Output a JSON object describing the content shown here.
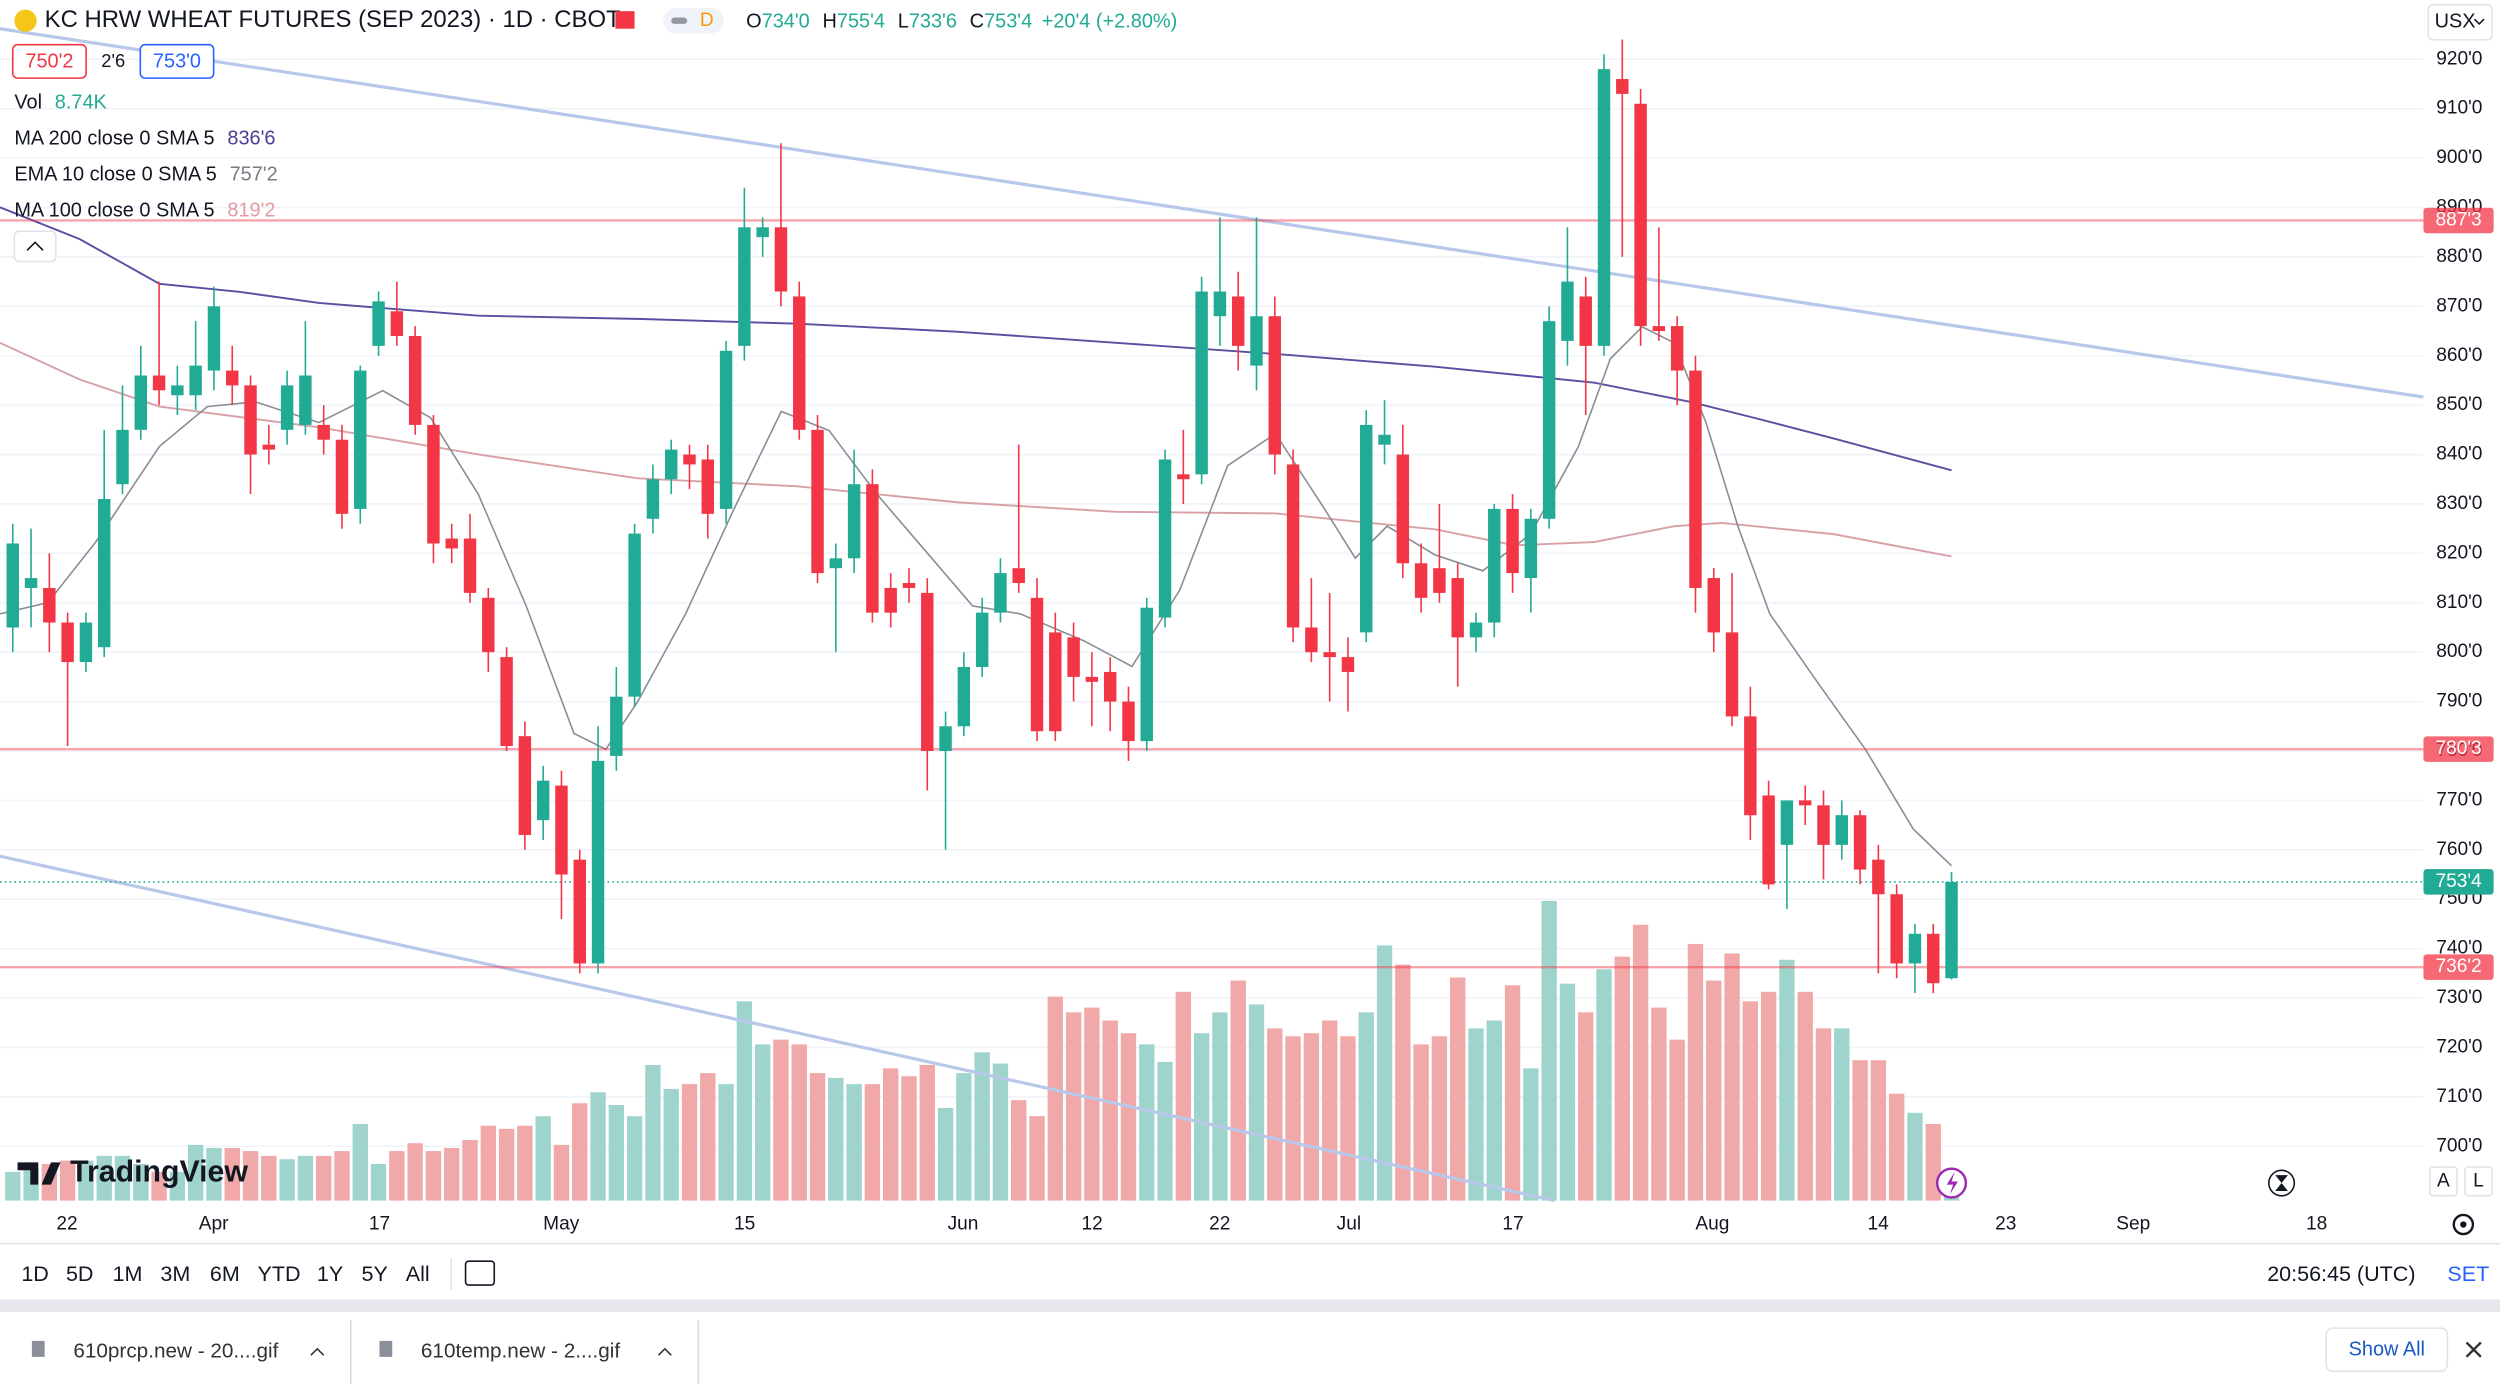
{
  "header": {
    "title": "KC HRW WHEAT FUTURES (SEP 2023) · 1D · CBOT",
    "badge": "D",
    "ohlc": [
      [
        "O",
        "734'0"
      ],
      [
        "H",
        "755'4"
      ],
      [
        "L",
        "733'6"
      ],
      [
        "C",
        "753'4"
      ]
    ],
    "change": "+20'4 (+2.80%)",
    "currency": "USX"
  },
  "quote": {
    "bid": "750'2",
    "spread": "2'6",
    "ask": "753'0"
  },
  "legend": [
    {
      "name": "Vol",
      "value": "8.74K",
      "color": "#22ab94"
    },
    {
      "name": "MA 200 close 0 SMA 5",
      "value": "836'6",
      "color": "#4a3f95"
    },
    {
      "name": "EMA 10 close 0 SMA 5",
      "value": "757'2",
      "color": "#787b86"
    },
    {
      "name": "MA 100 close 0 SMA 5",
      "value": "819'2",
      "color": "#e39aa2"
    }
  ],
  "logo": "TradingView",
  "scale_buttons": [
    "A",
    "L"
  ],
  "chart_data": {
    "type": "candlestick",
    "up_color": "#22ab94",
    "down_color": "#f23645",
    "volume_up_color": "#9fd4cc",
    "volume_down_color": "#f0a8a8",
    "xlabels": [
      "22",
      "Apr",
      "17",
      "May",
      "15",
      "Jun",
      "12",
      "22",
      "Jul",
      "17",
      "Aug",
      "14",
      "23",
      "Sep",
      "18"
    ],
    "open": [
      805,
      813,
      813,
      806,
      798,
      801,
      834,
      845,
      856,
      852,
      852,
      857,
      857,
      854,
      842,
      845,
      846,
      846,
      843,
      829,
      862,
      869,
      864,
      846,
      823,
      823,
      811,
      799,
      783,
      766,
      773,
      758,
      737,
      779,
      791,
      827,
      835,
      840,
      839,
      829,
      862,
      884,
      886,
      872,
      845,
      817,
      819,
      834,
      813,
      814,
      812,
      780,
      785,
      797,
      808,
      817,
      811,
      804,
      803,
      795,
      796,
      790,
      782,
      807,
      836,
      836,
      868,
      872,
      858,
      868,
      838,
      805,
      800,
      799,
      804,
      842,
      840,
      818,
      817,
      815,
      803,
      806,
      829,
      815,
      827,
      863,
      872,
      862,
      916,
      911,
      866,
      866,
      857,
      815,
      804,
      787,
      771,
      761,
      770,
      769,
      761,
      767,
      758,
      751,
      737,
      743,
      734
    ],
    "high": [
      826,
      825,
      820,
      808,
      808,
      845,
      854,
      862,
      875,
      858,
      867,
      874,
      862,
      856,
      846,
      857,
      867,
      850,
      846,
      858,
      873,
      875,
      866,
      848,
      826,
      828,
      813,
      801,
      786,
      777,
      776,
      760,
      785,
      797,
      826,
      838,
      843,
      842,
      842,
      863,
      894,
      888,
      903,
      875,
      848,
      822,
      841,
      837,
      816,
      817,
      815,
      788,
      800,
      811,
      819,
      842,
      815,
      808,
      806,
      800,
      799,
      793,
      811,
      841,
      845,
      876,
      888,
      877,
      888,
      872,
      841,
      815,
      812,
      803,
      849,
      851,
      846,
      822,
      830,
      818,
      808,
      830,
      832,
      829,
      870,
      886,
      876,
      921,
      924,
      914,
      886,
      868,
      860,
      817,
      816,
      793,
      774,
      768,
      773,
      772,
      770,
      768,
      761,
      753,
      745,
      745,
      755.5
    ],
    "low": [
      800,
      805,
      800,
      781,
      796,
      799,
      832,
      843,
      850,
      848,
      849,
      853,
      850,
      832,
      838,
      842,
      844,
      840,
      825,
      826,
      860,
      862,
      844,
      818,
      818,
      810,
      796,
      780,
      760,
      762,
      746,
      735,
      735,
      776,
      789,
      824,
      832,
      833,
      823,
      826,
      859,
      880,
      870,
      843,
      814,
      800,
      816,
      806,
      805,
      810,
      772,
      760,
      783,
      795,
      806,
      812,
      782,
      782,
      790,
      785,
      784,
      778,
      780,
      805,
      830,
      834,
      862,
      857,
      853,
      836,
      802,
      798,
      790,
      788,
      802,
      838,
      815,
      808,
      810,
      793,
      800,
      803,
      812,
      808,
      825,
      858,
      848,
      860,
      880,
      862,
      863,
      850,
      808,
      800,
      785,
      762,
      752,
      748,
      765,
      754,
      758,
      753,
      735,
      734,
      731,
      731,
      733.75
    ],
    "close": [
      822,
      815,
      806,
      798,
      806,
      831,
      845,
      856,
      853,
      854,
      858,
      870,
      854,
      840,
      841,
      854,
      856,
      843,
      828,
      857,
      871,
      864,
      846,
      822,
      821,
      812,
      800,
      781,
      763,
      774,
      755,
      737,
      778,
      791,
      824,
      835,
      841,
      838,
      828,
      861,
      886,
      886,
      873,
      845,
      816,
      819,
      834,
      808,
      808,
      813,
      780,
      785,
      797,
      808,
      816,
      814,
      784,
      784,
      795,
      794,
      790,
      782,
      809,
      839,
      835,
      873,
      873,
      862,
      868,
      840,
      805,
      800,
      799,
      796,
      846,
      844,
      818,
      811,
      812,
      803,
      806,
      829,
      816,
      827,
      867,
      875,
      862,
      918,
      913,
      866,
      865,
      857,
      813,
      804,
      787,
      767,
      753,
      770,
      769,
      761,
      767,
      756,
      751,
      737,
      743,
      733,
      753.5
    ],
    "volume": [
      12,
      13.3,
      15.3,
      16.7,
      16.7,
      18.7,
      18.7,
      15.3,
      12,
      12,
      23.3,
      22,
      22,
      20.7,
      18.7,
      17.3,
      18.7,
      18.7,
      20.7,
      32,
      15.3,
      20.7,
      24,
      20.7,
      22,
      25.3,
      31.3,
      30,
      31.3,
      35.3,
      23.3,
      40.7,
      45.3,
      40,
      35.3,
      56.7,
      46.7,
      48.7,
      53.3,
      48.7,
      83.3,
      65.3,
      67.3,
      65.3,
      53.3,
      51.3,
      48.7,
      48.7,
      55.3,
      52,
      56.7,
      38.7,
      53.3,
      62,
      57.3,
      42,
      35.3,
      85.3,
      78.7,
      80.7,
      75.3,
      70,
      65.3,
      58,
      87.3,
      70,
      78.7,
      92,
      82,
      72,
      68.7,
      70,
      75.3,
      68.7,
      78.7,
      106.7,
      98.7,
      65.3,
      68.7,
      93.3,
      72,
      75.3,
      90,
      55.3,
      125.3,
      90.7,
      78.7,
      96.7,
      102,
      115.3,
      80.7,
      67.3,
      107.3,
      92,
      103.3,
      83.3,
      87.3,
      100.7,
      87.3,
      72,
      72,
      58.7,
      58.7,
      44.7,
      36.7,
      32,
      8.74
    ],
    "ylim": [
      689,
      932
    ],
    "vlim": [
      0,
      150
    ],
    "yticks": [
      {
        "value": 920,
        "label": "920'0"
      },
      {
        "value": 910,
        "label": "910'0"
      },
      {
        "value": 900,
        "label": "900'0"
      },
      {
        "value": 890,
        "label": "890'0"
      },
      {
        "value": 880,
        "label": "880'0"
      },
      {
        "value": 870,
        "label": "870'0"
      },
      {
        "value": 860,
        "label": "860'0"
      },
      {
        "value": 850,
        "label": "850'0"
      },
      {
        "value": 840,
        "label": "840'0"
      },
      {
        "value": 830,
        "label": "830'0"
      },
      {
        "value": 820,
        "label": "820'0"
      },
      {
        "value": 810,
        "label": "810'0"
      },
      {
        "value": 800,
        "label": "800'0"
      },
      {
        "value": 790,
        "label": "790'0"
      },
      {
        "value": 780,
        "label": "780'0"
      },
      {
        "value": 770,
        "label": "770'0"
      },
      {
        "value": 760,
        "label": "760'0"
      },
      {
        "value": 750,
        "label": "750'0"
      },
      {
        "value": 740,
        "label": "740'0"
      },
      {
        "value": 730,
        "label": "730'0"
      },
      {
        "value": 720,
        "label": "720'0"
      },
      {
        "value": 710,
        "label": "710'0"
      },
      {
        "value": 700,
        "label": "700'0"
      }
    ],
    "grid": true,
    "price_lines": [
      {
        "value": 887.375,
        "label": "887'3",
        "color": "#f23645"
      },
      {
        "value": 780.375,
        "label": "780'3",
        "color": "#f23645"
      },
      {
        "value": 736.25,
        "label": "736'2",
        "color": "#f23645"
      }
    ],
    "last_price": {
      "value": 753.5,
      "label": "753'4",
      "color": "#22ab94"
    }
  },
  "toolbar": {
    "ranges": [
      "1D",
      "5D",
      "1M",
      "3M",
      "6M",
      "YTD",
      "1Y",
      "5Y",
      "All"
    ],
    "clock": "20:56:45 (UTC)",
    "settings": "SET"
  },
  "downloads": {
    "files": [
      "610prcp.new - 20....gif",
      "610temp.new - 2....gif"
    ],
    "show_all": "Show All"
  }
}
